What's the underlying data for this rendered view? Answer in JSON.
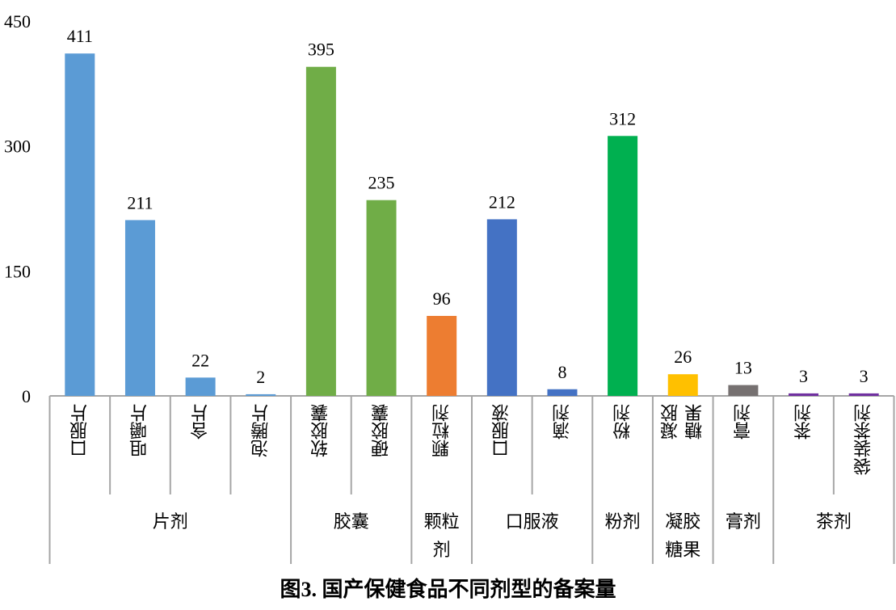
{
  "chart_data": {
    "type": "bar",
    "title": "图3. 国产保健食品不同剂型的备案量",
    "xlabel": "",
    "ylabel": "",
    "ylim": [
      0,
      450
    ],
    "yticks": [
      0,
      150,
      300,
      450
    ],
    "grid": false,
    "categories": [
      "口服片",
      "咀嚼片",
      "含片",
      "泡腾片",
      "软胶囊",
      "硬胶囊",
      "颗粒剂",
      "口服液",
      "滴剂",
      "粉剂",
      "凝胶\n糖果",
      "膏剂",
      "茶剂",
      "袋装茶剂"
    ],
    "values": [
      411,
      211,
      22,
      2,
      395,
      235,
      96,
      212,
      8,
      312,
      26,
      13,
      3,
      3
    ],
    "groups": [
      {
        "label": "片剂",
        "count": 4,
        "color": "#5B9BD5"
      },
      {
        "label": "胶囊",
        "count": 2,
        "color": "#70AD47"
      },
      {
        "label": "颗粒\n剂",
        "count": 1,
        "color": "#ED7D31"
      },
      {
        "label": "口服液",
        "count": 2,
        "color": "#4472C4"
      },
      {
        "label": "粉剂",
        "count": 1,
        "color": "#00B050"
      },
      {
        "label": "凝胶\n糖果",
        "count": 1,
        "color": "#FFC000"
      },
      {
        "label": "膏剂",
        "count": 1,
        "color": "#767171"
      },
      {
        "label": "茶剂",
        "count": 2,
        "color": "#7030A0"
      }
    ]
  }
}
